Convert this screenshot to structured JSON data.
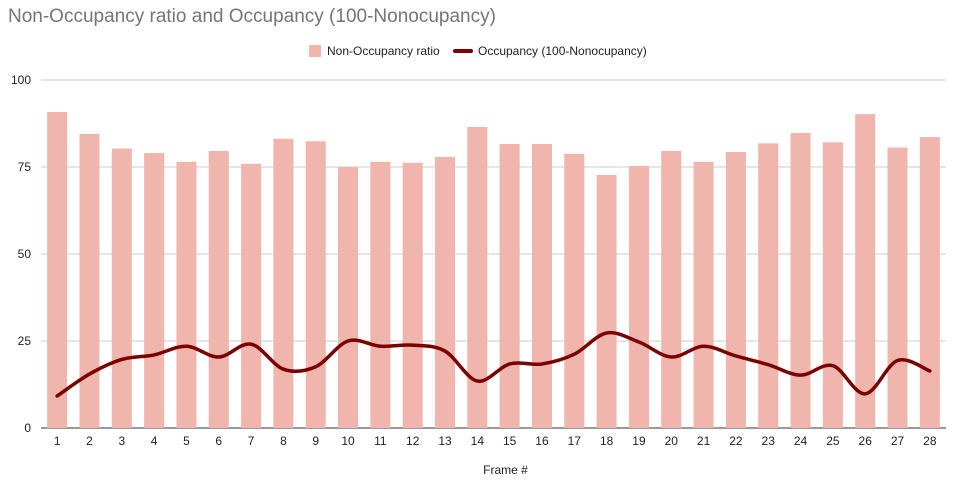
{
  "chart_data": {
    "type": "bar",
    "title": "Non-Occupancy ratio and Occupancy (100-Nonocupancy)",
    "xlabel": "Frame #",
    "ylabel": "",
    "ylim": [
      0,
      100
    ],
    "yticks": [
      0,
      25,
      50,
      75,
      100
    ],
    "grid": true,
    "legend_position": "top-center",
    "categories": [
      "1",
      "2",
      "3",
      "4",
      "5",
      "6",
      "7",
      "8",
      "9",
      "10",
      "11",
      "12",
      "13",
      "14",
      "15",
      "16",
      "17",
      "18",
      "19",
      "20",
      "21",
      "22",
      "23",
      "24",
      "25",
      "26",
      "27",
      "28"
    ],
    "series": [
      {
        "name": "Non-Occupancy ratio",
        "type": "bar",
        "color": "#f0b5ad",
        "values": [
          90.8,
          84.5,
          80.3,
          79.0,
          76.5,
          79.6,
          75.9,
          83.1,
          82.4,
          75.0,
          76.5,
          76.2,
          77.9,
          86.5,
          81.6,
          81.6,
          78.8,
          72.7,
          75.3,
          79.6,
          76.5,
          79.3,
          81.8,
          84.8,
          82.1,
          90.2,
          80.6,
          83.6
        ]
      },
      {
        "name": "Occupancy (100-Nonocupancy)",
        "type": "line",
        "color": "#7b0000",
        "values": [
          9.2,
          15.5,
          19.7,
          21.0,
          23.5,
          20.4,
          24.1,
          16.9,
          17.6,
          25.0,
          23.5,
          23.8,
          22.1,
          13.5,
          18.4,
          18.4,
          21.2,
          27.3,
          24.7,
          20.4,
          23.5,
          20.7,
          18.2,
          15.2,
          17.9,
          9.8,
          19.4,
          16.4
        ]
      }
    ]
  }
}
